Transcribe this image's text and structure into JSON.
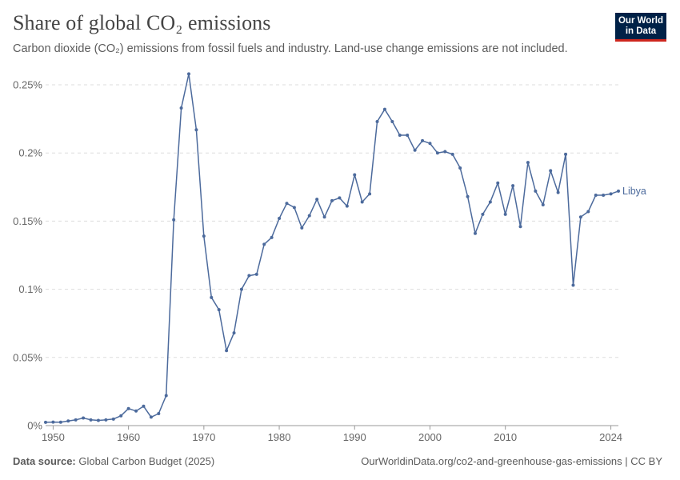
{
  "header": {
    "title": "Share of global CO₂ emissions",
    "subtitle": "Carbon dioxide (CO₂) emissions from fossil fuels and industry. Land-use change emissions are not included.",
    "logo_line1": "Our World",
    "logo_line2": "in Data"
  },
  "footer": {
    "source_label": "Data source:",
    "source_value": "Global Carbon Budget (2025)",
    "credit": "OurWorldinData.org/co2-and-greenhouse-gas-emissions | CC BY"
  },
  "colors": {
    "series": "#4c6a9c",
    "grid": "#dddddd",
    "axis": "#999999"
  },
  "chart_data": {
    "type": "line",
    "title": "Share of global CO₂ emissions",
    "subtitle": "Carbon dioxide (CO₂) emissions from fossil fuels and industry. Land-use change emissions are not included.",
    "xlim": [
      1949,
      2025
    ],
    "ylim": [
      0,
      0.25
    ],
    "x_ticks": [
      1950,
      1960,
      1970,
      1980,
      1990,
      2000,
      2010,
      2024
    ],
    "y_ticks": [
      0,
      0.05,
      0.1,
      0.15,
      0.2,
      0.25
    ],
    "y_tick_labels": [
      "0%",
      "0.05%",
      "0.1%",
      "0.15%",
      "0.2%",
      "0.25%"
    ],
    "grid": "horizontal-dashed",
    "series": [
      {
        "name": "Libya",
        "x": [
          1949,
          1950,
          1951,
          1952,
          1953,
          1954,
          1955,
          1956,
          1957,
          1958,
          1959,
          1960,
          1961,
          1962,
          1963,
          1964,
          1965,
          1966,
          1967,
          1968,
          1969,
          1970,
          1971,
          1972,
          1973,
          1974,
          1975,
          1976,
          1977,
          1978,
          1979,
          1980,
          1981,
          1982,
          1983,
          1984,
          1985,
          1986,
          1987,
          1988,
          1989,
          1990,
          1991,
          1992,
          1993,
          1994,
          1995,
          1996,
          1997,
          1998,
          1999,
          2000,
          2001,
          2002,
          2003,
          2004,
          2005,
          2006,
          2007,
          2008,
          2009,
          2010,
          2011,
          2012,
          2013,
          2014,
          2015,
          2016,
          2017,
          2018,
          2019,
          2020,
          2021,
          2022,
          2023,
          2024,
          2025
        ],
        "values": [
          0.0024,
          0.0026,
          0.0025,
          0.0034,
          0.0042,
          0.0056,
          0.0042,
          0.0038,
          0.0042,
          0.0048,
          0.0072,
          0.0125,
          0.0107,
          0.0142,
          0.0062,
          0.0088,
          0.022,
          0.151,
          0.233,
          0.258,
          0.217,
          0.139,
          0.094,
          0.085,
          0.055,
          0.068,
          0.1,
          0.11,
          0.111,
          0.133,
          0.138,
          0.152,
          0.163,
          0.16,
          0.145,
          0.154,
          0.166,
          0.153,
          0.165,
          0.167,
          0.161,
          0.184,
          0.164,
          0.17,
          0.223,
          0.232,
          0.223,
          0.213,
          0.213,
          0.202,
          0.209,
          0.207,
          0.2,
          0.201,
          0.199,
          0.189,
          0.168,
          0.141,
          0.155,
          0.164,
          0.178,
          0.155,
          0.176,
          0.146,
          0.193,
          0.172,
          0.162,
          0.187,
          0.171,
          0.199,
          0.103,
          0.153,
          0.157,
          0.169,
          0.169,
          0.17,
          0.172
        ]
      }
    ]
  }
}
